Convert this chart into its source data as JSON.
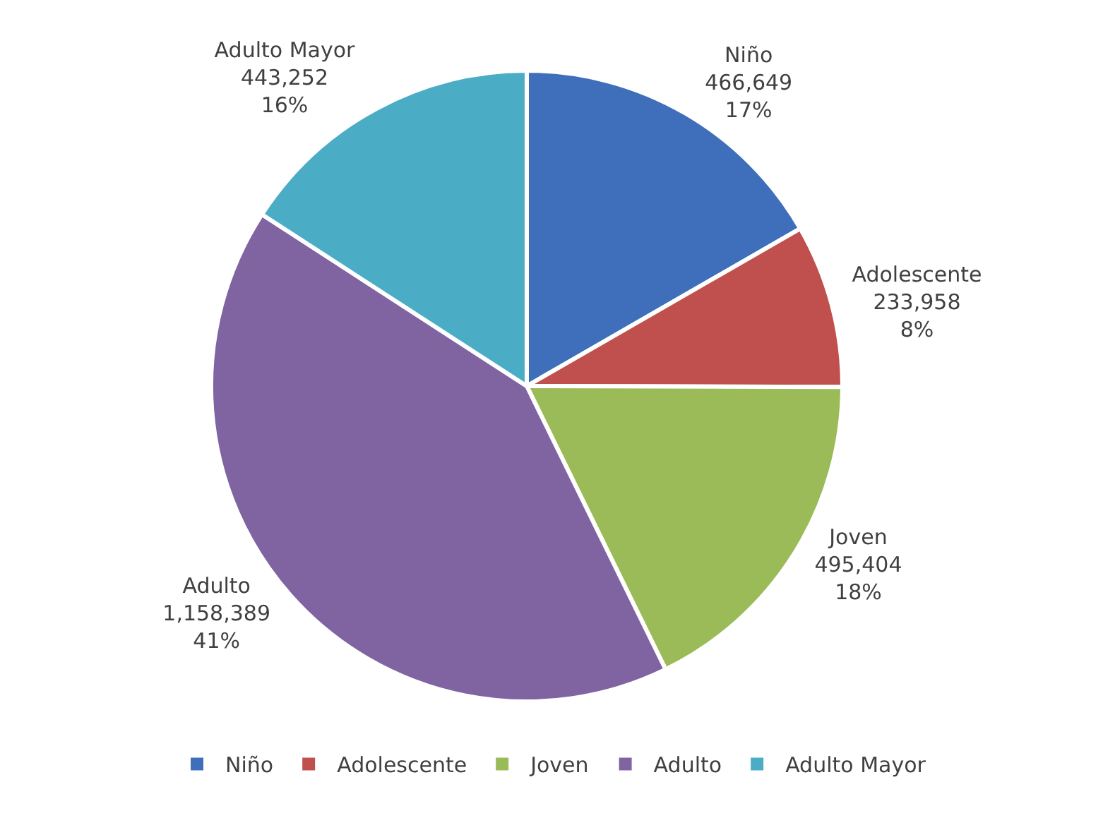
{
  "chart_data": {
    "type": "pie",
    "categories": [
      "Niño",
      "Adolescente",
      "Joven",
      "Adulto",
      "Adulto Mayor"
    ],
    "values": [
      466649,
      233958,
      495404,
      1158389,
      443252
    ],
    "colors": [
      "#3f6fba",
      "#c0504d",
      "#9bbb59",
      "#8064a2",
      "#4bacc6"
    ],
    "value_labels": [
      "466,649\n17%",
      "233,958\n8%",
      "495,404\n18%",
      "1,158,389\n41%",
      "443,252\n16%"
    ],
    "legend": "bottom"
  }
}
